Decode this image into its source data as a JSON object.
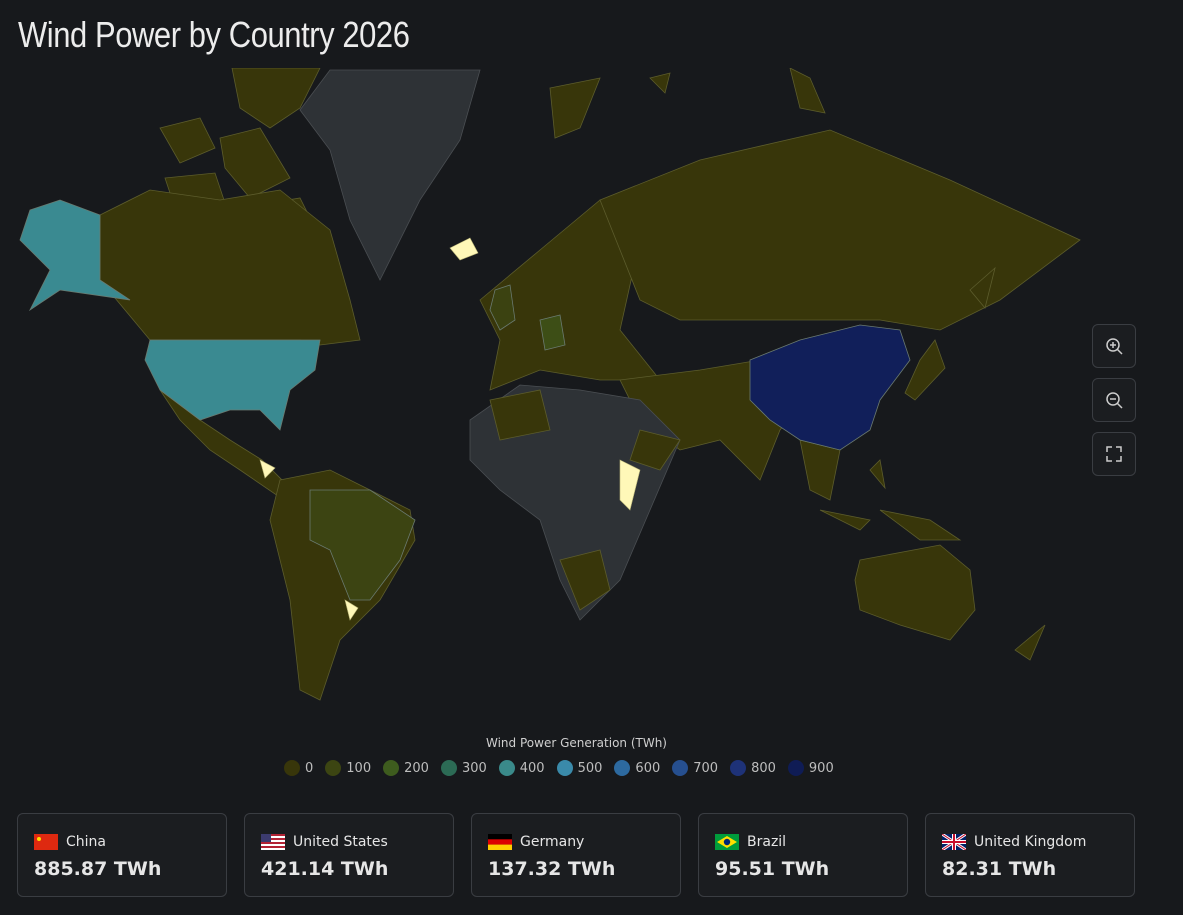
{
  "header": {
    "title": "Wind Power by Country 2026"
  },
  "legend": {
    "title": "Wind Power Generation (TWh)",
    "stops": [
      {
        "value": 0,
        "color": "#38360a"
      },
      {
        "value": 100,
        "color": "#3c4512"
      },
      {
        "value": 200,
        "color": "#3e5c1e"
      },
      {
        "value": 300,
        "color": "#2c6b55"
      },
      {
        "value": 400,
        "color": "#3a8a8a"
      },
      {
        "value": 500,
        "color": "#3a8aaa"
      },
      {
        "value": 600,
        "color": "#2d6aa0"
      },
      {
        "value": 700,
        "color": "#264f8f"
      },
      {
        "value": 800,
        "color": "#1e3278"
      },
      {
        "value": 900,
        "color": "#0f1c55"
      }
    ]
  },
  "cards": [
    {
      "country": "China",
      "value": 885.87,
      "value_label": "885.87 TWh"
    },
    {
      "country": "United States",
      "value": 421.14,
      "value_label": "421.14 TWh"
    },
    {
      "country": "Germany",
      "value": 137.32,
      "value_label": "137.32 TWh"
    },
    {
      "country": "Brazil",
      "value": 95.51,
      "value_label": "95.51 TWh"
    },
    {
      "country": "United Kingdom",
      "value": 82.31,
      "value_label": "82.31 TWh"
    }
  ]
}
